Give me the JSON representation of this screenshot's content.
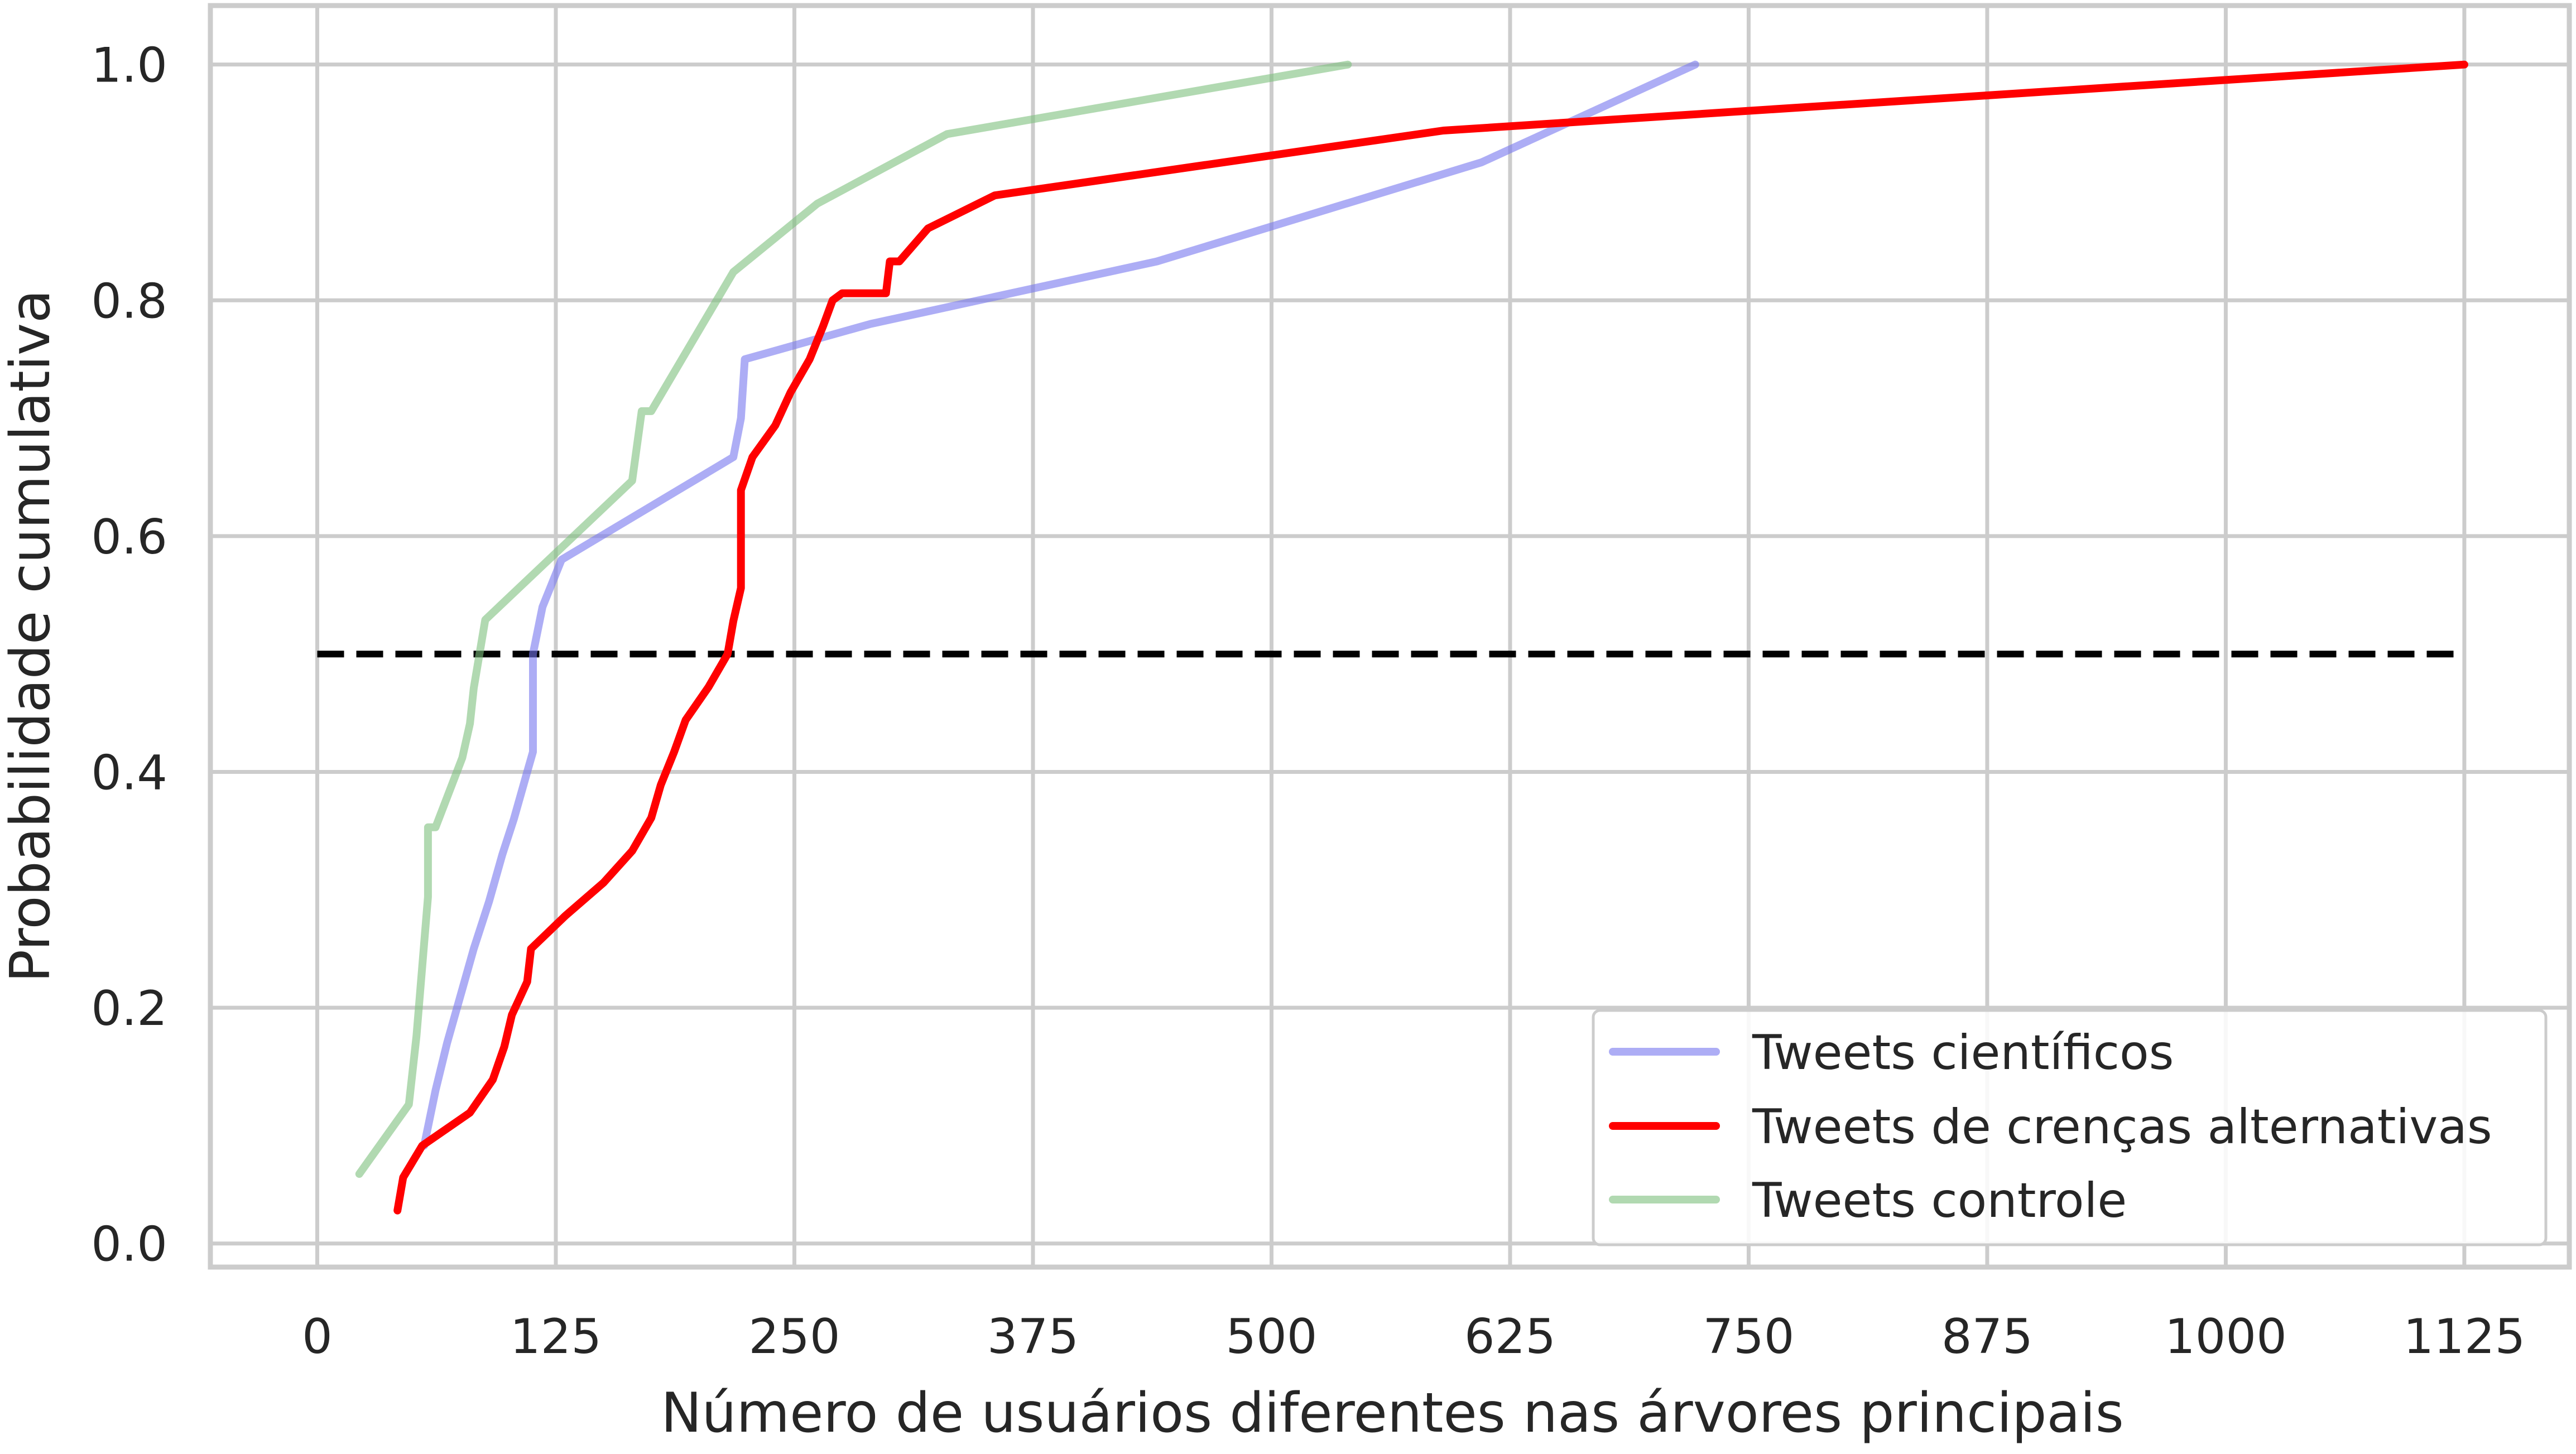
{
  "chart_data": {
    "type": "line",
    "title": "",
    "xlabel": "Número de usuários diferentes nas árvores principais",
    "ylabel": "Probabilidade cumulativa",
    "xlim": [
      -56,
      1180
    ],
    "ylim": [
      -0.02,
      1.05
    ],
    "xticks": [
      0,
      125,
      250,
      375,
      500,
      625,
      750,
      875,
      1000,
      1125
    ],
    "xtick_labels": [
      "0",
      "125",
      "250",
      "375",
      "500",
      "625",
      "750",
      "875",
      "1000",
      "1125"
    ],
    "yticks": [
      0.0,
      0.2,
      0.4,
      0.6,
      0.8,
      1.0
    ],
    "ytick_labels": [
      "0.0",
      "0.2",
      "0.4",
      "0.6",
      "0.8",
      "1.0"
    ],
    "grid": true,
    "legend_position": "lower-right",
    "reference_line": {
      "y": 0.5,
      "x_range": [
        0,
        1125
      ],
      "color": "#000000",
      "style": "dashed"
    },
    "series": [
      {
        "name": "Tweets científicos",
        "color": "#7777ee",
        "opacity": 0.6,
        "x": [
          56,
          62,
          68,
          75,
          82,
          90,
          97,
          103,
          110,
          113,
          113,
          113,
          118,
          128,
          218,
          222,
          224,
          290,
          440,
          610,
          722
        ],
        "y": [
          0.083,
          0.13,
          0.17,
          0.21,
          0.25,
          0.29,
          0.33,
          0.36,
          0.4,
          0.417,
          0.45,
          0.5,
          0.54,
          0.58,
          0.667,
          0.7,
          0.75,
          0.78,
          0.833,
          0.917,
          1.0
        ]
      },
      {
        "name": "Tweets de crenças alternativas",
        "color": "#ff0000",
        "opacity": 1,
        "x": [
          42,
          45,
          55,
          80,
          92,
          98,
          102,
          110,
          112,
          130,
          150,
          165,
          175,
          180,
          187,
          193,
          205,
          215,
          218,
          222,
          222,
          228,
          240,
          248,
          258,
          265,
          270,
          275,
          282,
          298,
          300,
          305,
          320,
          355,
          590,
          1125
        ],
        "y": [
          0.028,
          0.056,
          0.083,
          0.111,
          0.139,
          0.167,
          0.194,
          0.222,
          0.25,
          0.278,
          0.306,
          0.333,
          0.361,
          0.389,
          0.417,
          0.444,
          0.472,
          0.5,
          0.528,
          0.556,
          0.639,
          0.667,
          0.694,
          0.722,
          0.75,
          0.778,
          0.8,
          0.806,
          0.806,
          0.806,
          0.833,
          0.833,
          0.861,
          0.889,
          0.944,
          1.0
        ]
      },
      {
        "name": "Tweets controle",
        "color": "#7dc07d",
        "opacity": 0.6,
        "x": [
          22,
          48,
          52,
          55,
          58,
          58,
          62,
          76,
          80,
          82,
          88,
          165,
          170,
          175,
          218,
          262,
          330,
          540
        ],
        "y": [
          0.059,
          0.118,
          0.176,
          0.235,
          0.294,
          0.353,
          0.353,
          0.412,
          0.441,
          0.471,
          0.529,
          0.647,
          0.706,
          0.706,
          0.824,
          0.882,
          0.941,
          1.0
        ]
      }
    ]
  }
}
